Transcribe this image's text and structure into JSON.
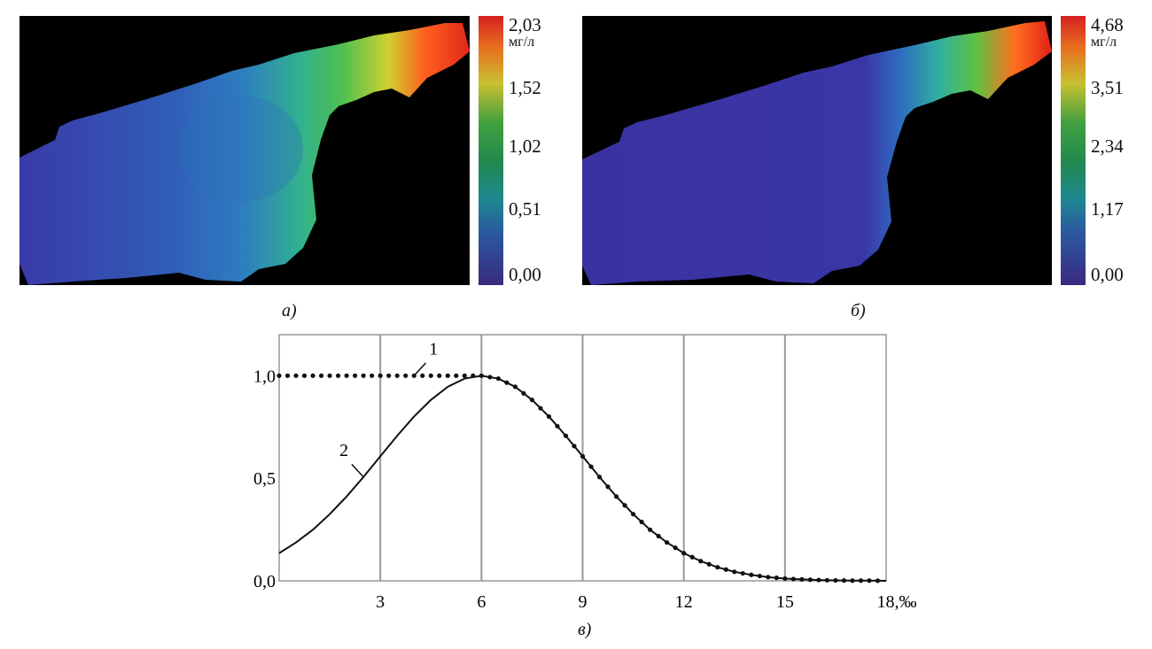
{
  "panels": [
    {
      "caption": "а)",
      "colorbar": {
        "unit": "мг/л",
        "ticks": [
          "2,03",
          "1,52",
          "1,02",
          "0,51",
          "0,00"
        ],
        "max": 2.03,
        "min": 0.0
      }
    },
    {
      "caption": "б)",
      "colorbar": {
        "unit": "мг/л",
        "ticks": [
          "4,68",
          "3,51",
          "2,34",
          "1,17",
          "0,00"
        ],
        "max": 4.68,
        "min": 0.0
      }
    }
  ],
  "colors": {
    "background": "#000000",
    "low": "#3a33a0",
    "mid": "#2ea060",
    "high": "#e02818"
  },
  "chart_data": {
    "type": "line",
    "caption": "в)",
    "xlabel": "‰",
    "xticks": [
      "3",
      "6",
      "9",
      "12",
      "15",
      "18,‰"
    ],
    "xtick_values": [
      3,
      6,
      9,
      12,
      15,
      18
    ],
    "yticks": [
      "0,0",
      "0,5",
      "1,0"
    ],
    "ytick_values": [
      0,
      0.5,
      1.0
    ],
    "xlim": [
      0,
      18
    ],
    "ylim": [
      0,
      1.2
    ],
    "grid": "vertical",
    "x": [
      0,
      0.5,
      1,
      1.5,
      2,
      2.5,
      3,
      3.5,
      4,
      4.5,
      5,
      5.5,
      6,
      6.5,
      7,
      7.5,
      8,
      8.5,
      9,
      9.5,
      10,
      10.5,
      11,
      11.5,
      12,
      12.5,
      13,
      13.5,
      14,
      14.5,
      15,
      15.5,
      16,
      16.5,
      17,
      17.5,
      18
    ],
    "series": [
      {
        "name": "1",
        "style": "dotted",
        "label_x": 4.0,
        "values": [
          1,
          1,
          1,
          1,
          1,
          1,
          1,
          1,
          1,
          1,
          1,
          1,
          1,
          0.986,
          0.946,
          0.882,
          0.801,
          0.707,
          0.607,
          0.506,
          0.411,
          0.325,
          0.249,
          0.187,
          0.135,
          0.096,
          0.066,
          0.044,
          0.029,
          0.018,
          0.011,
          0.007,
          0.004,
          0.002,
          0.001,
          0.001,
          0
        ]
      },
      {
        "name": "2",
        "style": "solid",
        "label_x": 2.5,
        "values": [
          0.135,
          0.187,
          0.249,
          0.325,
          0.411,
          0.506,
          0.607,
          0.707,
          0.801,
          0.882,
          0.946,
          0.986,
          1,
          0.986,
          0.946,
          0.882,
          0.801,
          0.707,
          0.607,
          0.506,
          0.411,
          0.325,
          0.249,
          0.187,
          0.135,
          0.096,
          0.066,
          0.044,
          0.029,
          0.018,
          0.011,
          0.007,
          0.004,
          0.002,
          0.001,
          0.001,
          0
        ]
      }
    ]
  }
}
